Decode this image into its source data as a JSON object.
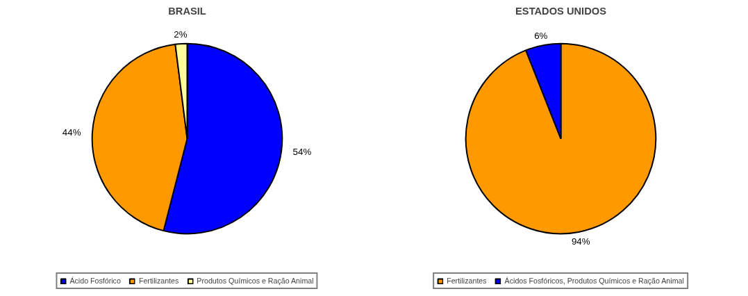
{
  "chart_data": [
    {
      "type": "pie",
      "title": "BRASIL",
      "categories": [
        "Ácido Fosfórico",
        "Fertilizantes",
        "Produtos Químicos e Ração Animal"
      ],
      "values": [
        54,
        44,
        2
      ],
      "value_labels": [
        "54%",
        "44%",
        "2%"
      ],
      "colors": [
        "#0000ff",
        "#ff9900",
        "#ffff99"
      ],
      "legend": "bottom"
    },
    {
      "type": "pie",
      "title": "ESTADOS UNIDOS",
      "categories": [
        "Fertilizantes",
        "Ácidos Fosfóricos, Produtos Químicos e Ração Animal"
      ],
      "values": [
        94,
        6
      ],
      "value_labels": [
        "94%",
        "6%"
      ],
      "colors": [
        "#ff9900",
        "#0000ff"
      ],
      "legend": "bottom"
    }
  ]
}
